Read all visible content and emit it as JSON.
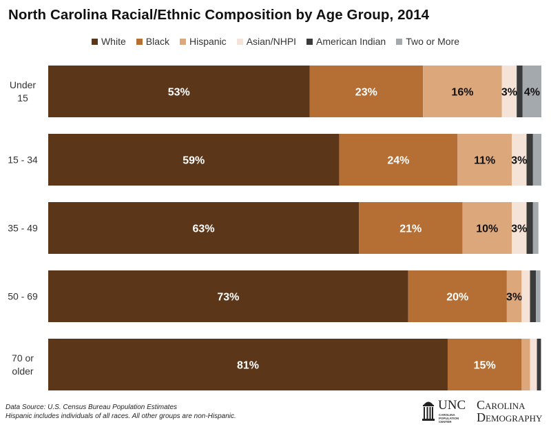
{
  "chart_data": {
    "type": "bar",
    "orientation": "horizontal",
    "stacked": true,
    "title": "North Carolina Racial/Ethnic Composition by Age Group, 2014",
    "categories": [
      "Under 15",
      "15 - 34",
      "35 - 49",
      "50 - 69",
      "70 or older"
    ],
    "series": [
      {
        "name": "White",
        "color": "#5c3619",
        "values": [
          53,
          59,
          63,
          73,
          81
        ],
        "labels": [
          "53%",
          "59%",
          "63%",
          "73%",
          "81%"
        ]
      },
      {
        "name": "Black",
        "color": "#b56e34",
        "values": [
          23,
          24,
          21,
          20,
          15
        ],
        "labels": [
          "23%",
          "24%",
          "21%",
          "20%",
          "15%"
        ]
      },
      {
        "name": "Hispanic",
        "color": "#dda77c",
        "values": [
          16,
          11,
          10,
          3,
          1.7
        ],
        "labels": [
          "16%",
          "11%",
          "10%",
          "3%",
          ""
        ]
      },
      {
        "name": "Asian/NHPI",
        "color": "#f6e3d7",
        "values": [
          3,
          3,
          3,
          1.7,
          1.4
        ],
        "labels": [
          "3%",
          "3%",
          "3%",
          "",
          ""
        ]
      },
      {
        "name": "American Indian",
        "color": "#3b3b3b",
        "values": [
          1.2,
          1.3,
          1.3,
          1.2,
          0.8
        ],
        "labels": [
          "",
          "",
          "",
          "",
          ""
        ]
      },
      {
        "name": "Two or More",
        "color": "#a4a9ae",
        "values": [
          4,
          1.9,
          1.1,
          0.9,
          0.5
        ],
        "labels": [
          "4%",
          "",
          "",
          "",
          ""
        ]
      }
    ],
    "xlim": [
      0,
      100
    ],
    "legend": "top",
    "grid": false
  },
  "footer": {
    "source": "Data Source: U.S. Census Bureau Population Estimates",
    "note": "Hispanic includes individuals of all races. All other groups are non-Hispanic."
  },
  "logo": {
    "unc": "UNC",
    "sub_line1": "CAROLINA",
    "sub_line2": "POPULATION",
    "sub_line3": "CENTER",
    "carolina": "Carolina",
    "demography": "Demography"
  }
}
